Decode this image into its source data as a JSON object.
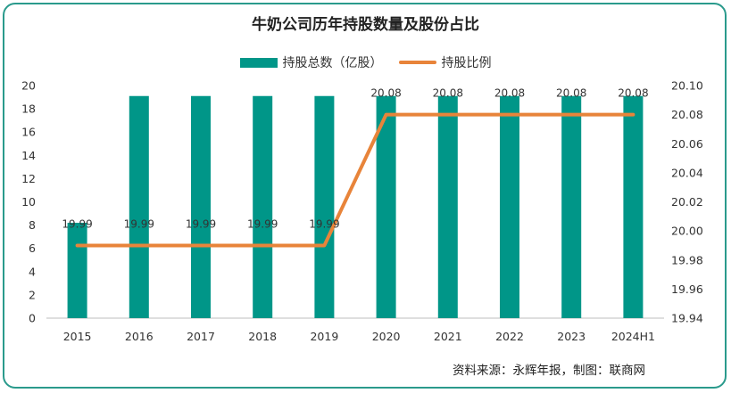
{
  "chart_data": {
    "type": "bar",
    "title": "牛奶公司历年持股数量及股份占比",
    "categories": [
      "2015",
      "2016",
      "2017",
      "2018",
      "2019",
      "2020",
      "2021",
      "2022",
      "2023",
      "2024H1"
    ],
    "series": [
      {
        "name": "持股总数（亿股）",
        "type": "bar",
        "axis": "left",
        "values": [
          8.2,
          19.1,
          19.1,
          19.1,
          19.1,
          19.1,
          19.1,
          19.1,
          19.1,
          19.1
        ],
        "color": "#009688"
      },
      {
        "name": "持股比例",
        "type": "line",
        "axis": "right",
        "values": [
          19.99,
          19.99,
          19.99,
          19.99,
          19.99,
          20.08,
          20.08,
          20.08,
          20.08,
          20.08
        ],
        "labels": [
          "19.99",
          "19.99",
          "19.99",
          "19.99",
          "19.99",
          "20.08",
          "20.08",
          "20.08",
          "20.08",
          "20.08"
        ],
        "color": "#e8843a"
      }
    ],
    "y_left": {
      "min": 0,
      "max": 20,
      "step": 2,
      "ticks": [
        "0",
        "2",
        "4",
        "6",
        "8",
        "10",
        "12",
        "14",
        "16",
        "18",
        "20"
      ]
    },
    "y_right": {
      "min": 19.94,
      "max": 20.1,
      "step": 0.02,
      "ticks": [
        "19.94",
        "19.96",
        "19.98",
        "20.00",
        "20.02",
        "20.04",
        "20.06",
        "20.08",
        "20.10"
      ]
    },
    "grid": false,
    "legend_position": "top-center"
  },
  "source_text": "资料来源：永辉年报，制图：联商网"
}
